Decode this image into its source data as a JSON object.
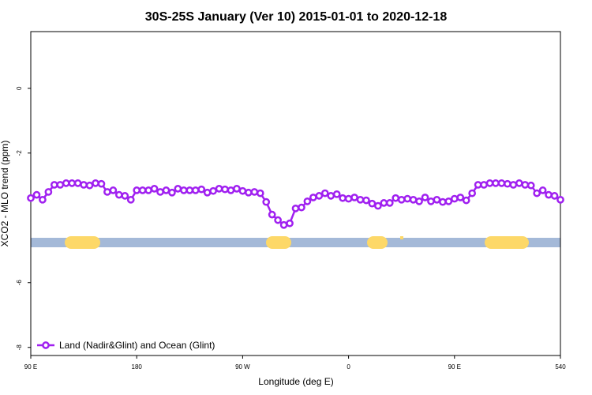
{
  "chart_data": {
    "type": "line",
    "title": "30S-25S January (Ver 10)   2015-01-01 to 2020-12-18",
    "x_label": "Longitude (deg E)",
    "y_label": "XCO2 - MLO trend (ppm)",
    "xlim": [
      90,
      540
    ],
    "xticks": [
      {
        "value": 90,
        "label": "90 E"
      },
      180,
      {
        "value": 270,
        "label": "90 W"
      },
      {
        "value": 360,
        "label": "0"
      },
      {
        "value": 450,
        "label": "90 E"
      },
      540
    ],
    "ylim": [
      -8.25,
      1.75
    ],
    "yticks": [
      -8,
      -6,
      -2,
      0
    ],
    "legend": "bottom-left",
    "x": [
      90,
      95,
      100,
      105,
      110,
      115,
      120,
      125,
      130,
      135,
      140,
      145,
      150,
      155,
      160,
      165,
      170,
      175,
      180,
      185,
      190,
      195,
      200,
      205,
      210,
      215,
      220,
      225,
      230,
      235,
      240,
      245,
      250,
      255,
      260,
      265,
      270,
      275,
      280,
      285,
      290,
      295,
      300,
      305,
      310,
      315,
      320,
      325,
      330,
      335,
      340,
      345,
      350,
      355,
      360,
      365,
      370,
      375,
      380,
      385,
      390,
      395,
      400,
      405,
      410,
      415,
      420,
      425,
      430,
      435,
      440,
      445,
      450,
      455,
      460,
      465,
      470,
      475,
      480,
      485,
      490,
      495,
      500,
      505,
      510,
      515,
      520,
      525,
      530,
      535,
      540
    ],
    "series": [
      {
        "name": "Land (Nadir&Glint) and Ocean (Glint)",
        "color": "#a020f0",
        "values": [
          -3.39,
          -3.29,
          -3.44,
          -3.2,
          -2.98,
          -2.98,
          -2.93,
          -2.93,
          -2.93,
          -2.98,
          -3.0,
          -2.93,
          -2.95,
          -3.2,
          -3.15,
          -3.29,
          -3.32,
          -3.44,
          -3.15,
          -3.15,
          -3.15,
          -3.1,
          -3.2,
          -3.15,
          -3.22,
          -3.1,
          -3.15,
          -3.15,
          -3.15,
          -3.12,
          -3.22,
          -3.17,
          -3.1,
          -3.12,
          -3.15,
          -3.1,
          -3.17,
          -3.22,
          -3.2,
          -3.24,
          -3.51,
          -3.9,
          -4.07,
          -4.22,
          -4.17,
          -3.71,
          -3.68,
          -3.49,
          -3.37,
          -3.32,
          -3.24,
          -3.32,
          -3.27,
          -3.39,
          -3.41,
          -3.37,
          -3.44,
          -3.46,
          -3.56,
          -3.63,
          -3.54,
          -3.54,
          -3.39,
          -3.44,
          -3.41,
          -3.44,
          -3.49,
          -3.37,
          -3.49,
          -3.44,
          -3.51,
          -3.49,
          -3.41,
          -3.37,
          -3.46,
          -3.24,
          -2.98,
          -2.98,
          -2.93,
          -2.93,
          -2.93,
          -2.95,
          -2.98,
          -2.93,
          -2.98,
          -3.0,
          -3.24,
          -3.15,
          -3.29,
          -3.32,
          -3.44
        ]
      }
    ]
  }
}
